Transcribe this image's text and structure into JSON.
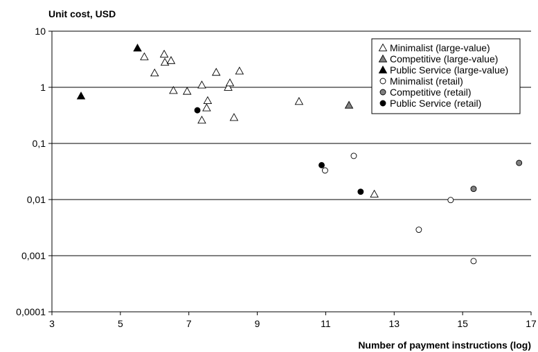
{
  "chart_data": {
    "type": "scatter",
    "ylabel": "Unit cost, USD",
    "xlabel": "Number of payment instructions (log)",
    "xlim": [
      3,
      17
    ],
    "ylim": [
      0.0001,
      10
    ],
    "y_scale": "log",
    "x_ticks": [
      "3",
      "5",
      "7",
      "9",
      "11",
      "13",
      "15",
      "17"
    ],
    "y_ticks": [
      "10",
      "1",
      "0,1",
      "0,01",
      "0,001",
      "0,0001"
    ],
    "grid": "horizontal",
    "legend_position": "top-right",
    "series": [
      {
        "name": "Minimalist (large-value)",
        "marker": "triangle",
        "fill": "#ffffff",
        "points": [
          [
            5.7,
            3.5
          ],
          [
            6.0,
            1.8
          ],
          [
            6.28,
            3.9
          ],
          [
            6.3,
            2.8
          ],
          [
            6.48,
            3.0
          ],
          [
            6.55,
            0.88
          ],
          [
            6.95,
            0.85
          ],
          [
            7.38,
            1.1
          ],
          [
            7.38,
            0.26
          ],
          [
            7.52,
            0.43
          ],
          [
            7.55,
            0.58
          ],
          [
            7.8,
            1.85
          ],
          [
            8.15,
            1.0
          ],
          [
            8.2,
            1.2
          ],
          [
            8.32,
            0.29
          ],
          [
            8.48,
            1.95
          ],
          [
            10.22,
            0.56
          ],
          [
            12.42,
            0.0125
          ]
        ]
      },
      {
        "name": "Competitive (large-value)",
        "marker": "triangle",
        "fill": "#808080",
        "points": [
          [
            11.68,
            0.48
          ]
        ]
      },
      {
        "name": "Public Service (large-value)",
        "marker": "triangle",
        "fill": "#000000",
        "points": [
          [
            3.85,
            0.7
          ],
          [
            5.5,
            5.0
          ]
        ]
      },
      {
        "name": "Minimalist (retail)",
        "marker": "circle",
        "fill": "#ffffff",
        "points": [
          [
            10.98,
            0.033
          ],
          [
            11.82,
            0.06
          ],
          [
            13.72,
            0.0029
          ],
          [
            14.65,
            0.0098
          ],
          [
            15.32,
            0.0008
          ]
        ]
      },
      {
        "name": "Competitive (retail)",
        "marker": "circle",
        "fill": "#808080",
        "points": [
          [
            15.32,
            0.0155
          ],
          [
            16.65,
            0.045
          ]
        ]
      },
      {
        "name": "Public Service (retail)",
        "marker": "circle",
        "fill": "#000000",
        "points": [
          [
            7.25,
            0.39
          ],
          [
            10.88,
            0.041
          ],
          [
            12.02,
            0.0138
          ]
        ]
      }
    ]
  }
}
